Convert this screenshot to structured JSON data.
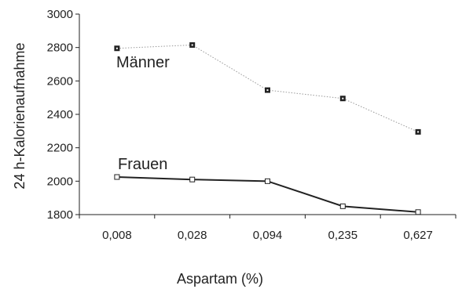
{
  "chart_data": {
    "type": "line",
    "categories": [
      "0,008",
      "0,028",
      "0,094",
      "0,235",
      "0,627"
    ],
    "ylabel": "24 h-Kalorienaufnahme",
    "xlabel": "Aspartam (%)",
    "ylim": [
      1800,
      3000
    ],
    "yticks": [
      1800,
      2000,
      2200,
      2400,
      2600,
      2800,
      3000
    ],
    "grid": false,
    "series": [
      {
        "name": "Männer",
        "values": [
          2795,
          2815,
          2545,
          2495,
          2295
        ],
        "line_style": "dotted",
        "color": "#999999",
        "marker": "filled-square"
      },
      {
        "name": "Frauen",
        "values": [
          2025,
          2010,
          2000,
          1850,
          1815
        ],
        "line_style": "solid",
        "color": "#222222",
        "marker": "open-square"
      }
    ]
  }
}
